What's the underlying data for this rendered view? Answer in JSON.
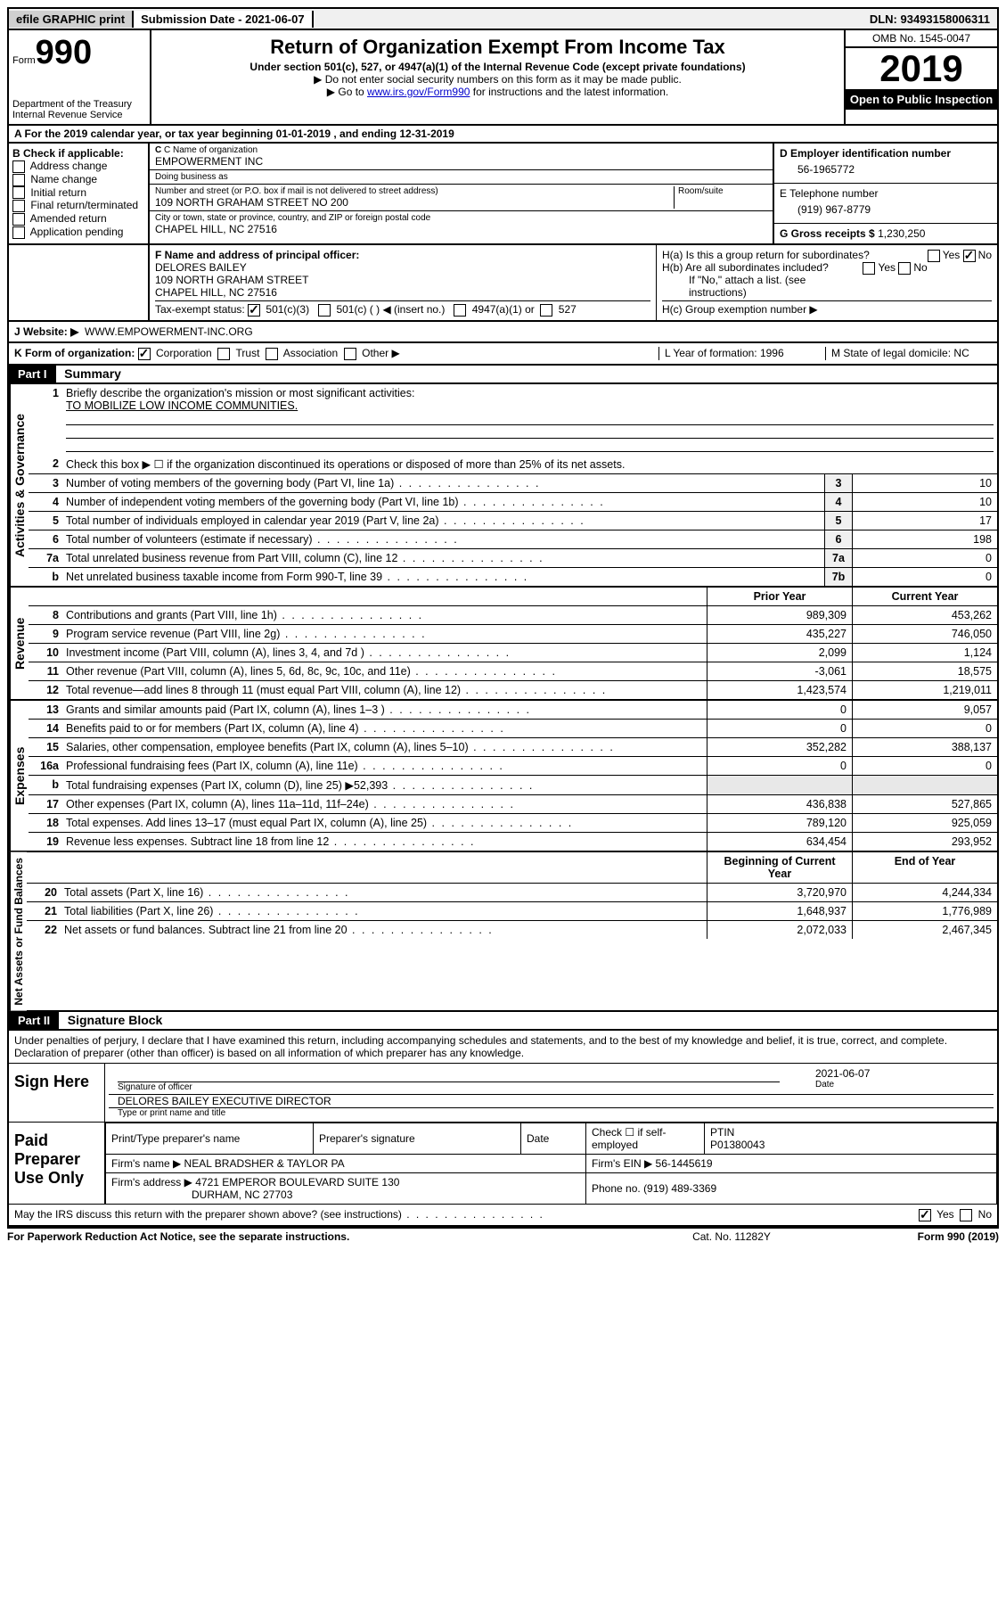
{
  "topbar": {
    "efile": "efile GRAPHIC print",
    "submission": "Submission Date - 2021-06-07",
    "dln": "DLN: 93493158006311"
  },
  "header": {
    "form_word": "Form",
    "form_no": "990",
    "dept": "Department of the Treasury",
    "irs": "Internal Revenue Service",
    "title": "Return of Organization Exempt From Income Tax",
    "subtitle": "Under section 501(c), 527, or 4947(a)(1) of the Internal Revenue Code (except private foundations)",
    "note1": "▶ Do not enter social security numbers on this form as it may be made public.",
    "note2_pre": "▶ Go to ",
    "note2_link": "www.irs.gov/Form990",
    "note2_post": " for instructions and the latest information.",
    "omb": "OMB No. 1545-0047",
    "year": "2019",
    "inspect": "Open to Public Inspection"
  },
  "lineA": "A For the 2019 calendar year, or tax year beginning 01-01-2019    , and ending 12-31-2019",
  "b": {
    "label": "B Check if applicable:",
    "opts": [
      "Address change",
      "Name change",
      "Initial return",
      "Final return/terminated",
      "Amended return",
      "Application pending"
    ]
  },
  "c": {
    "name_lbl": "C Name of organization",
    "name": "EMPOWERMENT INC",
    "dba_lbl": "Doing business as",
    "dba": "",
    "addr_lbl": "Number and street (or P.O. box if mail is not delivered to street address)",
    "suite_lbl": "Room/suite",
    "addr": "109 NORTH GRAHAM STREET NO 200",
    "city_lbl": "City or town, state or province, country, and ZIP or foreign postal code",
    "city": "CHAPEL HILL, NC  27516"
  },
  "d": {
    "ein_lbl": "D Employer identification number",
    "ein": "56-1965772",
    "tel_lbl": "E Telephone number",
    "tel": "(919) 967-8779",
    "gross_lbl": "G Gross receipts $",
    "gross": "1,230,250"
  },
  "f": {
    "lbl": "F  Name and address of principal officer:",
    "name": "DELORES BAILEY",
    "addr1": "109 NORTH GRAHAM STREET",
    "addr2": "CHAPEL HILL, NC  27516"
  },
  "i": {
    "lbl": "Tax-exempt status:",
    "o1": "501(c)(3)",
    "o2": "501(c) (   ) ◀ (insert no.)",
    "o3": "4947(a)(1) or",
    "o4": "527"
  },
  "j": {
    "lbl": "J   Website: ▶",
    "val": "WWW.EMPOWERMENT-INC.ORG"
  },
  "h": {
    "a": "H(a)  Is this a group return for subordinates?",
    "b": "H(b)  Are all subordinates included?",
    "b2": "If \"No,\" attach a list. (see instructions)",
    "c": "H(c)  Group exemption number ▶"
  },
  "k": {
    "lbl": "K Form of organization:",
    "o1": "Corporation",
    "o2": "Trust",
    "o3": "Association",
    "o4": "Other ▶",
    "l": "L Year of formation: 1996",
    "m": "M State of legal domicile: NC"
  },
  "part1": {
    "hdr": "Part I",
    "title": "Summary",
    "l1": "Briefly describe the organization's mission or most significant activities:",
    "l1v": "TO MOBILIZE LOW INCOME COMMUNITIES.",
    "l2": "Check this box ▶ ☐  if the organization discontinued its operations or disposed of more than 25% of its net assets.",
    "tabs": {
      "gov": "Activities & Governance",
      "rev": "Revenue",
      "exp": "Expenses",
      "net": "Net Assets or Fund Balances"
    },
    "lines_gov": [
      {
        "n": "3",
        "d": "Number of voting members of the governing body (Part VI, line 1a)",
        "box": "3",
        "v": "10"
      },
      {
        "n": "4",
        "d": "Number of independent voting members of the governing body (Part VI, line 1b)",
        "box": "4",
        "v": "10"
      },
      {
        "n": "5",
        "d": "Total number of individuals employed in calendar year 2019 (Part V, line 2a)",
        "box": "5",
        "v": "17"
      },
      {
        "n": "6",
        "d": "Total number of volunteers (estimate if necessary)",
        "box": "6",
        "v": "198"
      },
      {
        "n": "7a",
        "d": "Total unrelated business revenue from Part VIII, column (C), line 12",
        "box": "7a",
        "v": "0"
      },
      {
        "n": "b",
        "d": "Net unrelated business taxable income from Form 990-T, line 39",
        "box": "7b",
        "v": "0"
      }
    ],
    "hdr_prior": "Prior Year",
    "hdr_curr": "Current Year",
    "lines_rev": [
      {
        "n": "8",
        "d": "Contributions and grants (Part VIII, line 1h)",
        "p": "989,309",
        "c": "453,262"
      },
      {
        "n": "9",
        "d": "Program service revenue (Part VIII, line 2g)",
        "p": "435,227",
        "c": "746,050"
      },
      {
        "n": "10",
        "d": "Investment income (Part VIII, column (A), lines 3, 4, and 7d )",
        "p": "2,099",
        "c": "1,124"
      },
      {
        "n": "11",
        "d": "Other revenue (Part VIII, column (A), lines 5, 6d, 8c, 9c, 10c, and 11e)",
        "p": "-3,061",
        "c": "18,575"
      },
      {
        "n": "12",
        "d": "Total revenue—add lines 8 through 11 (must equal Part VIII, column (A), line 12)",
        "p": "1,423,574",
        "c": "1,219,011"
      }
    ],
    "lines_exp": [
      {
        "n": "13",
        "d": "Grants and similar amounts paid (Part IX, column (A), lines 1–3 )",
        "p": "0",
        "c": "9,057"
      },
      {
        "n": "14",
        "d": "Benefits paid to or for members (Part IX, column (A), line 4)",
        "p": "0",
        "c": "0"
      },
      {
        "n": "15",
        "d": "Salaries, other compensation, employee benefits (Part IX, column (A), lines 5–10)",
        "p": "352,282",
        "c": "388,137"
      },
      {
        "n": "16a",
        "d": "Professional fundraising fees (Part IX, column (A), line 11e)",
        "p": "0",
        "c": "0"
      },
      {
        "n": "b",
        "d": "Total fundraising expenses (Part IX, column (D), line 25) ▶52,393",
        "p": "",
        "c": "",
        "gray": true
      },
      {
        "n": "17",
        "d": "Other expenses (Part IX, column (A), lines 11a–11d, 11f–24e)",
        "p": "436,838",
        "c": "527,865"
      },
      {
        "n": "18",
        "d": "Total expenses. Add lines 13–17 (must equal Part IX, column (A), line 25)",
        "p": "789,120",
        "c": "925,059"
      },
      {
        "n": "19",
        "d": "Revenue less expenses. Subtract line 18 from line 12",
        "p": "634,454",
        "c": "293,952"
      }
    ],
    "hdr_begin": "Beginning of Current Year",
    "hdr_end": "End of Year",
    "lines_net": [
      {
        "n": "20",
        "d": "Total assets (Part X, line 16)",
        "p": "3,720,970",
        "c": "4,244,334"
      },
      {
        "n": "21",
        "d": "Total liabilities (Part X, line 26)",
        "p": "1,648,937",
        "c": "1,776,989"
      },
      {
        "n": "22",
        "d": "Net assets or fund balances. Subtract line 21 from line 20",
        "p": "2,072,033",
        "c": "2,467,345"
      }
    ]
  },
  "part2": {
    "hdr": "Part II",
    "title": "Signature Block",
    "perjury": "Under penalties of perjury, I declare that I have examined this return, including accompanying schedules and statements, and to the best of my knowledge and belief, it is true, correct, and complete. Declaration of preparer (other than officer) is based on all information of which preparer has any knowledge.",
    "sign_here": "Sign Here",
    "sig_of": "Signature of officer",
    "date_lbl": "Date",
    "date": "2021-06-07",
    "officer": "DELORES BAILEY  EXECUTIVE DIRECTOR",
    "type_lbl": "Type or print name and title",
    "paid": "Paid Preparer Use Only",
    "prep_name_lbl": "Print/Type preparer's name",
    "prep_sig_lbl": "Preparer's signature",
    "prep_date_lbl": "Date",
    "self_emp": "Check ☐ if self-employed",
    "ptin_lbl": "PTIN",
    "ptin": "P01380043",
    "firm_name_lbl": "Firm's name    ▶",
    "firm_name": "NEAL BRADSHER & TAYLOR PA",
    "firm_ein_lbl": "Firm's EIN ▶",
    "firm_ein": "56-1445619",
    "firm_addr_lbl": "Firm's address ▶",
    "firm_addr1": "4721 EMPEROR BOULEVARD SUITE 130",
    "firm_addr2": "DURHAM, NC  27703",
    "phone_lbl": "Phone no.",
    "phone": "(919) 489-3369",
    "discuss": "May the IRS discuss this return with the preparer shown above? (see instructions)",
    "yes": "Yes",
    "no": "No"
  },
  "footer": {
    "left": "For Paperwork Reduction Act Notice, see the separate instructions.",
    "mid": "Cat. No. 11282Y",
    "right": "Form 990 (2019)"
  }
}
